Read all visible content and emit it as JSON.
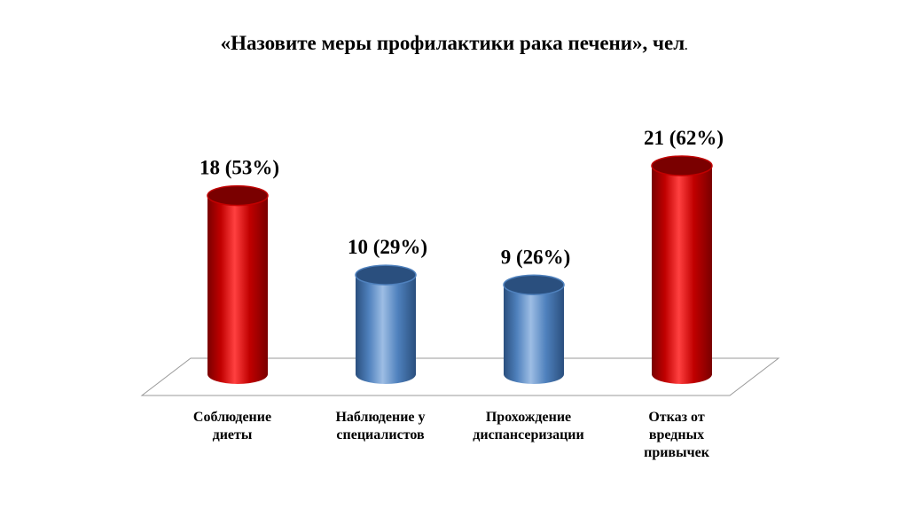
{
  "chart_data": {
    "type": "bar",
    "title": "«Назовите меры профилактики рака печени», чел",
    "title_suffix": ".",
    "categories": [
      [
        "Соблюдение",
        "диеты"
      ],
      [
        "Наблюдение у",
        "специалистов"
      ],
      [
        "Прохождение",
        "диспансеризации"
      ],
      [
        "Отказ от",
        "вредных",
        "привычек"
      ]
    ],
    "values": [
      18,
      10,
      9,
      21
    ],
    "percent_labels": [
      "18 (53%)",
      "10 (29%)",
      "9 (26%)",
      "21 (62%)"
    ],
    "bar_colors": [
      "#c00000",
      "#4f81bd",
      "#4f81bd",
      "#c00000"
    ],
    "bar_dark_colors": [
      "#7a0000",
      "#2a4f7e",
      "#2a4f7e",
      "#7a0000"
    ],
    "bar_light_colors": [
      "#ff4040",
      "#9dbde4",
      "#9dbde4",
      "#ff4040"
    ],
    "ylim": [
      0,
      21
    ],
    "grid": false,
    "legend": "none"
  }
}
